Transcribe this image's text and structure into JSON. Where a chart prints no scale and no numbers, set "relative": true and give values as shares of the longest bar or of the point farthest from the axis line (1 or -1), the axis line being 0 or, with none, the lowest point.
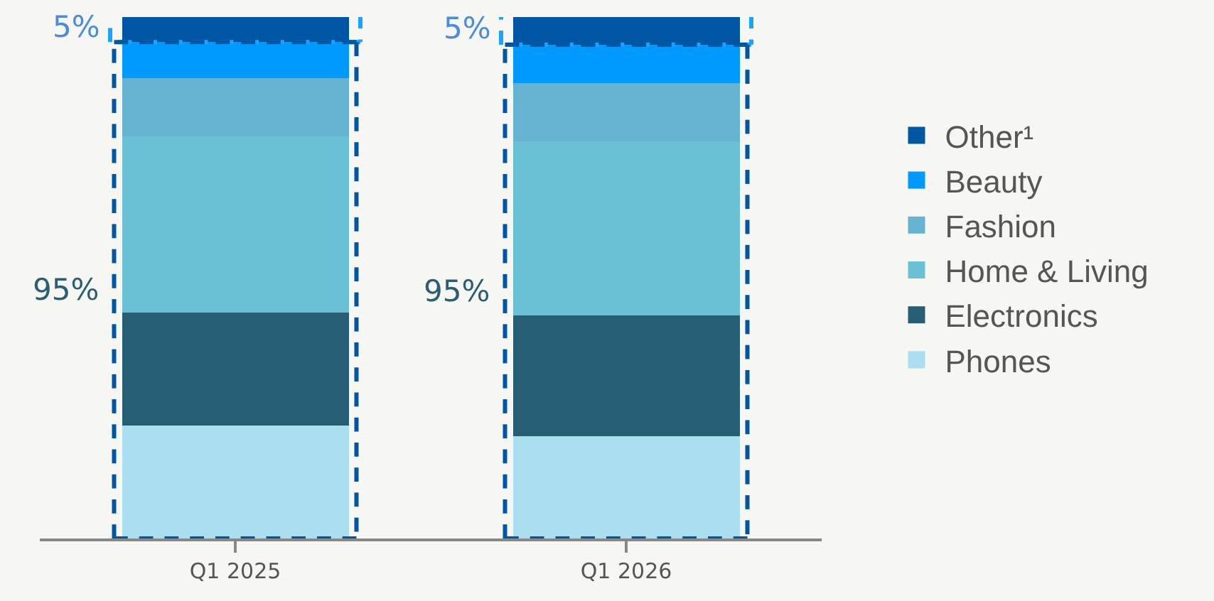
{
  "chart_data": {
    "type": "bar",
    "stacked": true,
    "relative": true,
    "categories": [
      "Q1 2025",
      "Q1 2026"
    ],
    "series": [
      {
        "name": "Phones",
        "color": "#aadff0",
        "values": [
          0.216,
          0.196
        ]
      },
      {
        "name": "Electronics",
        "color": "#265e74",
        "values": [
          0.217,
          0.232
        ]
      },
      {
        "name": "Home & Living",
        "color": "#6ac0d4",
        "values": [
          0.338,
          0.333
        ]
      },
      {
        "name": "Fashion",
        "color": "#66b2d1",
        "values": [
          0.112,
          0.112
        ]
      },
      {
        "name": "Beauty",
        "color": "#0099fe",
        "values": [
          0.069,
          0.074
        ]
      },
      {
        "name": "Other¹",
        "color": "#0056a3",
        "values": [
          0.048,
          0.053
        ]
      }
    ],
    "annotations": [
      "5%",
      "95%",
      "5%",
      "95%"
    ],
    "legend": "right"
  }
}
